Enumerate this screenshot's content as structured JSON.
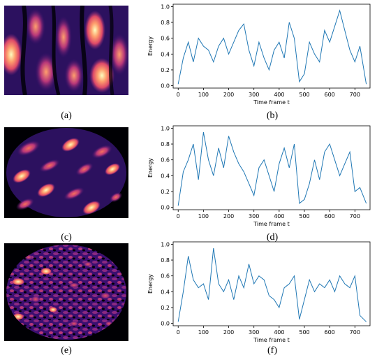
{
  "figure": {
    "panels": [
      {
        "label": "(a)",
        "kind": "image",
        "image_style": "coarse-speckle"
      },
      {
        "label": "(b)",
        "kind": "chart",
        "chart_index": 0
      },
      {
        "label": "(c)",
        "kind": "image",
        "image_style": "medium-speckle"
      },
      {
        "label": "(d)",
        "kind": "chart",
        "chart_index": 1
      },
      {
        "label": "(e)",
        "kind": "image",
        "image_style": "fine-speckle"
      },
      {
        "label": "(f)",
        "kind": "chart",
        "chart_index": 2
      }
    ],
    "colormap": [
      "#000004",
      "#3b0f70",
      "#8c2981",
      "#de4968",
      "#fe9f6d",
      "#fcfdbf"
    ]
  },
  "chart_data": [
    {
      "type": "line",
      "title": "",
      "xlabel": "Time frame t",
      "ylabel": "Energy",
      "xlim": [
        -20,
        760
      ],
      "ylim": [
        -0.03,
        1.03
      ],
      "xticks": [
        0,
        100,
        200,
        300,
        400,
        500,
        600,
        700
      ],
      "yticks": [
        0.0,
        0.2,
        0.4,
        0.6,
        0.8,
        1.0
      ],
      "line_color": "#1f77b4",
      "series": [
        {
          "x": [
            0,
            20,
            40,
            60,
            80,
            100,
            120,
            140,
            160,
            180,
            200,
            220,
            240,
            260,
            280,
            300,
            320,
            340,
            360,
            380,
            400,
            420,
            440,
            460,
            480,
            500,
            520,
            540,
            560,
            580,
            600,
            620,
            640,
            660,
            680,
            700,
            720,
            745
          ],
          "values": [
            0.02,
            0.35,
            0.55,
            0.3,
            0.6,
            0.5,
            0.45,
            0.3,
            0.5,
            0.6,
            0.4,
            0.55,
            0.7,
            0.78,
            0.45,
            0.25,
            0.55,
            0.35,
            0.2,
            0.45,
            0.55,
            0.35,
            0.8,
            0.6,
            0.05,
            0.15,
            0.55,
            0.4,
            0.3,
            0.7,
            0.55,
            0.75,
            0.95,
            0.7,
            0.45,
            0.3,
            0.5,
            0.02
          ]
        }
      ]
    },
    {
      "type": "line",
      "title": "",
      "xlabel": "Time frame t",
      "ylabel": "Energy",
      "xlim": [
        -20,
        760
      ],
      "ylim": [
        -0.03,
        1.03
      ],
      "xticks": [
        0,
        100,
        200,
        300,
        400,
        500,
        600,
        700
      ],
      "yticks": [
        0.0,
        0.2,
        0.4,
        0.6,
        0.8,
        1.0
      ],
      "line_color": "#1f77b4",
      "series": [
        {
          "x": [
            0,
            20,
            40,
            60,
            80,
            100,
            120,
            140,
            160,
            180,
            200,
            220,
            240,
            260,
            280,
            300,
            320,
            340,
            360,
            380,
            400,
            420,
            440,
            460,
            480,
            500,
            520,
            540,
            560,
            580,
            600,
            620,
            640,
            660,
            680,
            700,
            720,
            745
          ],
          "values": [
            0.02,
            0.45,
            0.6,
            0.8,
            0.35,
            0.95,
            0.6,
            0.4,
            0.75,
            0.5,
            0.9,
            0.7,
            0.55,
            0.45,
            0.3,
            0.15,
            0.5,
            0.6,
            0.4,
            0.2,
            0.55,
            0.75,
            0.5,
            0.8,
            0.05,
            0.1,
            0.3,
            0.6,
            0.35,
            0.7,
            0.8,
            0.6,
            0.4,
            0.55,
            0.7,
            0.2,
            0.25,
            0.05
          ]
        }
      ]
    },
    {
      "type": "line",
      "title": "",
      "xlabel": "Time frame t",
      "ylabel": "Energy",
      "xlim": [
        -20,
        760
      ],
      "ylim": [
        -0.03,
        1.03
      ],
      "xticks": [
        0,
        100,
        200,
        300,
        400,
        500,
        600,
        700
      ],
      "yticks": [
        0.0,
        0.2,
        0.4,
        0.6,
        0.8,
        1.0
      ],
      "line_color": "#1f77b4",
      "series": [
        {
          "x": [
            0,
            20,
            40,
            60,
            80,
            100,
            120,
            140,
            160,
            180,
            200,
            220,
            240,
            260,
            280,
            300,
            320,
            340,
            360,
            380,
            400,
            420,
            440,
            460,
            480,
            500,
            520,
            540,
            560,
            580,
            600,
            620,
            640,
            660,
            680,
            700,
            720,
            745
          ],
          "values": [
            0.02,
            0.4,
            0.85,
            0.55,
            0.45,
            0.5,
            0.3,
            0.95,
            0.5,
            0.4,
            0.55,
            0.3,
            0.6,
            0.45,
            0.75,
            0.5,
            0.6,
            0.55,
            0.35,
            0.3,
            0.2,
            0.45,
            0.5,
            0.6,
            0.05,
            0.3,
            0.55,
            0.4,
            0.5,
            0.45,
            0.55,
            0.4,
            0.6,
            0.5,
            0.45,
            0.6,
            0.1,
            0.02
          ]
        }
      ]
    }
  ]
}
